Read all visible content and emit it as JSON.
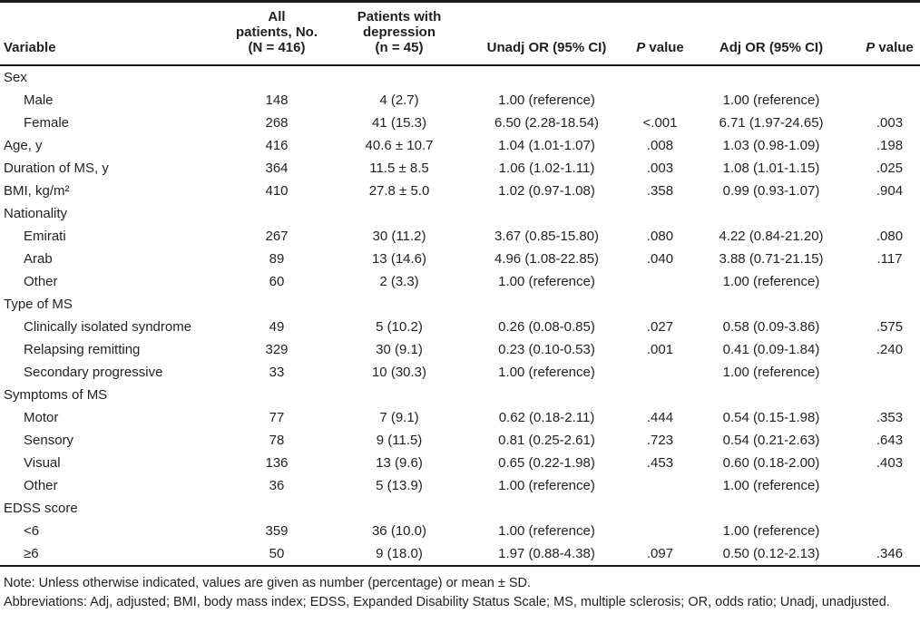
{
  "header": {
    "variable": "Variable",
    "all_patients_lines": [
      "All",
      "patients, No.",
      "(N = 416)"
    ],
    "depression_lines": [
      "Patients with",
      "depression",
      "(n = 45)"
    ],
    "unadj_or": "Unadj OR (95% CI)",
    "adj_or": "Adj OR (95% CI)",
    "p_value_italic": "P",
    "p_value_rest": " value"
  },
  "rows": [
    {
      "label": "Sex",
      "indent": false,
      "group": true,
      "cells": [
        "",
        "",
        "",
        "",
        "",
        ""
      ]
    },
    {
      "label": "Male",
      "indent": true,
      "group": false,
      "cells": [
        "148",
        "4 (2.7)",
        "1.00 (reference)",
        "",
        "1.00 (reference)",
        ""
      ]
    },
    {
      "label": "Female",
      "indent": true,
      "group": false,
      "cells": [
        "268",
        "41 (15.3)",
        "6.50 (2.28-18.54)",
        "<.001",
        "6.71 (1.97-24.65)",
        ".003"
      ]
    },
    {
      "label": "Age, y",
      "indent": false,
      "group": false,
      "cells": [
        "416",
        "40.6 ± 10.7",
        "1.04 (1.01-1.07)",
        ".008",
        "1.03 (0.98-1.09)",
        ".198"
      ]
    },
    {
      "label": "Duration of MS, y",
      "indent": false,
      "group": false,
      "cells": [
        "364",
        "11.5 ± 8.5",
        "1.06 (1.02-1.11)",
        ".003",
        "1.08 (1.01-1.15)",
        ".025"
      ]
    },
    {
      "label": "BMI, kg/m²",
      "indent": false,
      "group": false,
      "cells": [
        "410",
        "27.8 ± 5.0",
        "1.02 (0.97-1.08)",
        ".358",
        "0.99 (0.93-1.07)",
        ".904"
      ]
    },
    {
      "label": "Nationality",
      "indent": false,
      "group": true,
      "cells": [
        "",
        "",
        "",
        "",
        "",
        ""
      ]
    },
    {
      "label": "Emirati",
      "indent": true,
      "group": false,
      "cells": [
        "267",
        "30 (11.2)",
        "3.67 (0.85-15.80)",
        ".080",
        "4.22 (0.84-21.20)",
        ".080"
      ]
    },
    {
      "label": "Arab",
      "indent": true,
      "group": false,
      "cells": [
        "89",
        "13 (14.6)",
        "4.96 (1.08-22.85)",
        ".040",
        "3.88 (0.71-21.15)",
        ".117"
      ]
    },
    {
      "label": "Other",
      "indent": true,
      "group": false,
      "cells": [
        "60",
        "2 (3.3)",
        "1.00 (reference)",
        "",
        "1.00 (reference)",
        ""
      ]
    },
    {
      "label": "Type of MS",
      "indent": false,
      "group": true,
      "cells": [
        "",
        "",
        "",
        "",
        "",
        ""
      ]
    },
    {
      "label": "Clinically isolated syndrome",
      "indent": true,
      "group": false,
      "cells": [
        "49",
        "5 (10.2)",
        "0.26 (0.08-0.85)",
        ".027",
        "0.58 (0.09-3.86)",
        ".575"
      ]
    },
    {
      "label": "Relapsing remitting",
      "indent": true,
      "group": false,
      "cells": [
        "329",
        "30 (9.1)",
        "0.23 (0.10-0.53)",
        ".001",
        "0.41 (0.09-1.84)",
        ".240"
      ]
    },
    {
      "label": "Secondary progressive",
      "indent": true,
      "group": false,
      "cells": [
        "33",
        "10 (30.3)",
        "1.00 (reference)",
        "",
        "1.00 (reference)",
        ""
      ]
    },
    {
      "label": "Symptoms of MS",
      "indent": false,
      "group": true,
      "cells": [
        "",
        "",
        "",
        "",
        "",
        ""
      ]
    },
    {
      "label": "Motor",
      "indent": true,
      "group": false,
      "cells": [
        "77",
        "7 (9.1)",
        "0.62 (0.18-2.11)",
        ".444",
        "0.54 (0.15-1.98)",
        ".353"
      ]
    },
    {
      "label": "Sensory",
      "indent": true,
      "group": false,
      "cells": [
        "78",
        "9 (11.5)",
        "0.81 (0.25-2.61)",
        ".723",
        "0.54 (0.21-2.63)",
        ".643"
      ]
    },
    {
      "label": "Visual",
      "indent": true,
      "group": false,
      "cells": [
        "136",
        "13 (9.6)",
        "0.65 (0.22-1.98)",
        ".453",
        "0.60 (0.18-2.00)",
        ".403"
      ]
    },
    {
      "label": "Other",
      "indent": true,
      "group": false,
      "cells": [
        "36",
        "5 (13.9)",
        "1.00 (reference)",
        "",
        "1.00 (reference)",
        ""
      ]
    },
    {
      "label": "EDSS score",
      "indent": false,
      "group": true,
      "cells": [
        "",
        "",
        "",
        "",
        "",
        ""
      ]
    },
    {
      "label": "<6",
      "indent": true,
      "group": false,
      "cells": [
        "359",
        "36 (10.0)",
        "1.00 (reference)",
        "",
        "1.00 (reference)",
        ""
      ]
    },
    {
      "label": "≥6",
      "indent": true,
      "group": false,
      "cells": [
        "50",
        "9 (18.0)",
        "1.97 (0.88-4.38)",
        ".097",
        "0.50 (0.12-2.13)",
        ".346"
      ]
    }
  ],
  "notes": {
    "note": "Note: Unless otherwise indicated, values are given as number (percentage) or mean ± SD.",
    "abbreviations": "Abbreviations: Adj, adjusted; BMI, body mass index; EDSS, Expanded Disability Status Scale; MS, multiple sclerosis; OR, odds ratio; Unadj, unadjusted."
  },
  "colors": {
    "text": "#231f20",
    "rule": "#1a1a1a",
    "background": "#ffffff"
  }
}
